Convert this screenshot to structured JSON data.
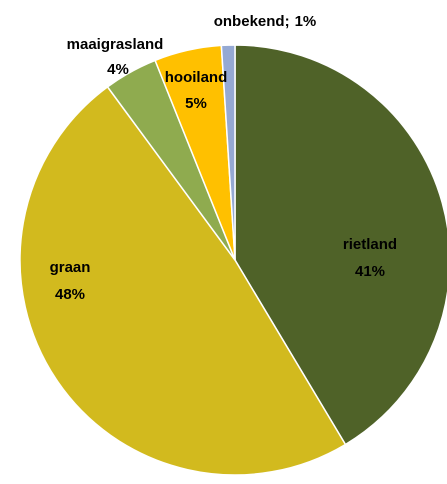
{
  "chart_data": {
    "type": "pie",
    "categories": [
      "rietland",
      "graan",
      "maaigrasland",
      "hooiland",
      "onbekend;"
    ],
    "values": [
      41,
      48,
      4,
      5,
      1
    ],
    "value_labels": [
      "41%",
      "48%",
      "4%",
      "5%",
      "1%"
    ],
    "colors": [
      "#4f6228",
      "#d2ba1e",
      "#8fab4f",
      "#ffc000",
      "#95a9d3"
    ]
  }
}
